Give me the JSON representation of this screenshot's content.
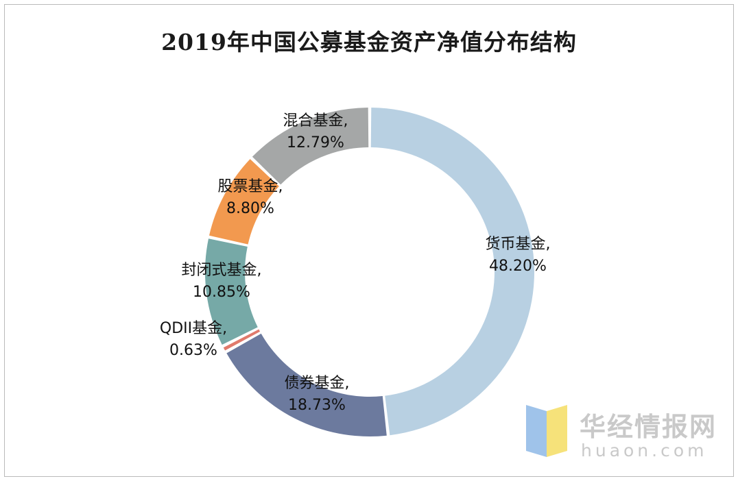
{
  "chart_data": {
    "type": "pie",
    "title": "2019年中国公募基金资产净值分布结构",
    "legend": "none",
    "data_label_format": "name, percent",
    "slices": [
      {
        "name": "货币基金",
        "value": 48.2,
        "label_value": "48.20%",
        "color": "#b8d0e2"
      },
      {
        "name": "债券基金",
        "value": 18.73,
        "label_value": "18.73%",
        "color": "#6c7a9e"
      },
      {
        "name": "QDII基金",
        "value": 0.63,
        "label_value": "0.63%",
        "color": "#e07a6c"
      },
      {
        "name": "封闭式基金",
        "value": 10.85,
        "label_value": "10.85%",
        "color": "#76a9a7"
      },
      {
        "name": "股票基金",
        "value": 8.8,
        "label_value": "8.80%",
        "color": "#f2994f"
      },
      {
        "name": "混合基金",
        "value": 12.79,
        "label_value": "12.79%",
        "color": "#a5a7a7"
      }
    ]
  },
  "watermark": {
    "name": "华经情报网",
    "url": "huaon.com"
  }
}
